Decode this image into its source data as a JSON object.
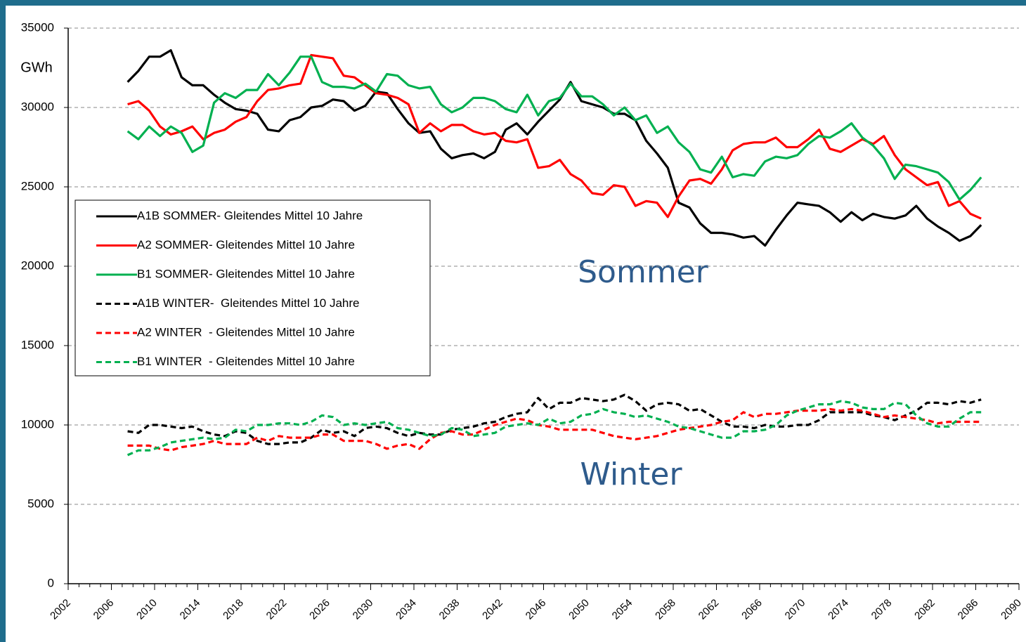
{
  "chart_data": {
    "type": "line",
    "y_label": "GWh",
    "annotations": [
      "Sommer",
      "Winter"
    ],
    "xlim": [
      2002,
      2090
    ],
    "xticks": [
      2002,
      2006,
      2010,
      2014,
      2018,
      2022,
      2026,
      2030,
      2034,
      2038,
      2042,
      2046,
      2050,
      2054,
      2058,
      2062,
      2066,
      2070,
      2074,
      2078,
      2082,
      2086,
      2090
    ],
    "ylim": [
      0,
      35000
    ],
    "yticks": [
      0,
      5000,
      10000,
      15000,
      20000,
      25000,
      30000,
      35000
    ],
    "grid": true,
    "x": [
      2007.5,
      2008.5,
      2009.5,
      2010.5,
      2011.5,
      2012.5,
      2013.5,
      2014.5,
      2015.5,
      2016.5,
      2017.5,
      2018.5,
      2019.5,
      2020.5,
      2021.5,
      2022.5,
      2023.5,
      2024.5,
      2025.5,
      2026.5,
      2027.5,
      2028.5,
      2029.5,
      2030.5,
      2031.5,
      2032.5,
      2033.5,
      2034.5,
      2035.5,
      2036.5,
      2037.5,
      2038.5,
      2039.5,
      2040.5,
      2041.5,
      2042.5,
      2043.5,
      2044.5,
      2045.5,
      2046.5,
      2047.5,
      2048.5,
      2049.5,
      2050.5,
      2051.5,
      2052.5,
      2053.5,
      2054.5,
      2055.5,
      2056.5,
      2057.5,
      2058.5,
      2059.5,
      2060.5,
      2061.5,
      2062.5,
      2063.5,
      2064.5,
      2065.5,
      2066.5,
      2067.5,
      2068.5,
      2069.5,
      2070.5,
      2071.5,
      2072.5,
      2073.5,
      2074.5,
      2075.5,
      2076.5,
      2077.5,
      2078.5,
      2079.5,
      2080.5,
      2081.5,
      2082.5,
      2083.5,
      2084.5,
      2085.5,
      2086.5
    ],
    "series": [
      {
        "name": "A1B SOMMER- Gleitendes Mittel 10 Jahre",
        "color": "#000000",
        "style": "solid",
        "values": [
          31600,
          32300,
          33200,
          33200,
          33600,
          31900,
          31400,
          31400,
          30800,
          30300,
          29900,
          29800,
          29600,
          28600,
          28500,
          29200,
          29400,
          30000,
          30100,
          30500,
          30400,
          29800,
          30100,
          31000,
          30900,
          29900,
          29000,
          28400,
          28500,
          27400,
          26800,
          27000,
          27100,
          26800,
          27200,
          28600,
          29000,
          28300,
          29100,
          29800,
          30500,
          31600,
          30400,
          30200,
          30000,
          29600,
          29600,
          29200,
          27900,
          27100,
          26200,
          24000,
          23700,
          22700,
          22100,
          22100,
          22000,
          21800,
          21900,
          21300,
          22300,
          23200,
          24000,
          23900,
          23800,
          23400,
          22800,
          23400,
          22900,
          23300,
          23100,
          23000,
          23200,
          23800,
          23000,
          22500,
          22100,
          21600,
          21900,
          22600
        ]
      },
      {
        "name": "A2 SOMMER- Gleitendes Mittel 10 Jahre",
        "color": "#ff0000",
        "style": "solid",
        "values": [
          30200,
          30400,
          29800,
          28800,
          28300,
          28500,
          28800,
          28000,
          28400,
          28600,
          29100,
          29400,
          30400,
          31100,
          31200,
          31400,
          31500,
          33300,
          33200,
          33100,
          32000,
          31900,
          31400,
          30900,
          30800,
          30600,
          30200,
          28400,
          29000,
          28500,
          28900,
          28900,
          28500,
          28300,
          28400,
          27900,
          27800,
          28000,
          26200,
          26300,
          26700,
          25800,
          25400,
          24600,
          24500,
          25100,
          25000,
          23800,
          24100,
          24000,
          23100,
          24400,
          25400,
          25500,
          25200,
          26100,
          27300,
          27700,
          27800,
          27800,
          28100,
          27500,
          27500,
          28000,
          28600,
          27400,
          27200,
          27600,
          28000,
          27700,
          28200,
          27000,
          26100,
          25600,
          25100,
          25300,
          23800,
          24100,
          23300,
          23000
        ]
      },
      {
        "name": "B1 SOMMER- Gleitendes Mittel 10 Jahre",
        "color": "#00b050",
        "style": "solid",
        "values": [
          28500,
          28000,
          28800,
          28200,
          28800,
          28400,
          27200,
          27600,
          30300,
          30900,
          30600,
          31100,
          31100,
          32100,
          31400,
          32200,
          33200,
          33200,
          31600,
          31300,
          31300,
          31200,
          31500,
          31000,
          32100,
          32000,
          31400,
          31200,
          31300,
          30200,
          29700,
          30000,
          30600,
          30600,
          30400,
          29900,
          29700,
          30800,
          29500,
          30400,
          30600,
          31500,
          30700,
          30700,
          30200,
          29500,
          30000,
          29200,
          29500,
          28400,
          28800,
          27800,
          27200,
          26100,
          25900,
          26900,
          25600,
          25800,
          25700,
          26600,
          26900,
          26800,
          27000,
          27700,
          28200,
          28100,
          28500,
          29000,
          28100,
          27600,
          26800,
          25500,
          26400,
          26300,
          26100,
          25900,
          25300,
          24200,
          24800,
          25600
        ]
      },
      {
        "name": "A1B WINTER-  Gleitendes Mittel 10 Jahre",
        "color": "#000000",
        "style": "dashed",
        "values": [
          9600,
          9500,
          10000,
          10000,
          9900,
          9800,
          9900,
          9600,
          9400,
          9300,
          9600,
          9500,
          9000,
          8800,
          8800,
          8900,
          8900,
          9200,
          9700,
          9500,
          9600,
          9300,
          9800,
          9900,
          9800,
          9500,
          9300,
          9500,
          9400,
          9400,
          9700,
          9800,
          9900,
          10100,
          10200,
          10500,
          10700,
          10800,
          11700,
          11000,
          11400,
          11400,
          11700,
          11600,
          11500,
          11600,
          11900,
          11500,
          10900,
          11300,
          11400,
          11300,
          10900,
          11000,
          10600,
          10200,
          9900,
          9900,
          9800,
          10000,
          9900,
          9900,
          10000,
          10000,
          10300,
          10800,
          10800,
          10800,
          10800,
          10600,
          10500,
          10300,
          10600,
          10900,
          11400,
          11400,
          11300,
          11500,
          11400,
          11600
        ]
      },
      {
        "name": "A2 WINTER  - Gleitendes Mittel 10 Jahre",
        "color": "#ff0000",
        "style": "dashed",
        "values": [
          8700,
          8700,
          8700,
          8500,
          8400,
          8600,
          8700,
          8800,
          9000,
          8800,
          8800,
          8800,
          9200,
          9000,
          9300,
          9200,
          9200,
          9200,
          9400,
          9400,
          9000,
          9000,
          9000,
          8800,
          8500,
          8700,
          8800,
          8500,
          9100,
          9500,
          9600,
          9400,
          9400,
          9700,
          10000,
          10200,
          10400,
          10300,
          10000,
          9900,
          9700,
          9700,
          9700,
          9700,
          9500,
          9300,
          9200,
          9100,
          9200,
          9300,
          9500,
          9700,
          9800,
          9900,
          10000,
          10200,
          10300,
          10800,
          10500,
          10700,
          10700,
          10800,
          10900,
          10900,
          10900,
          11000,
          10900,
          11000,
          10900,
          10700,
          10500,
          10600,
          10500,
          10400,
          10300,
          10100,
          10200,
          10200,
          10200,
          10200
        ]
      },
      {
        "name": "B1 WINTER  - Gleitendes Mittel 10 Jahre",
        "color": "#00b050",
        "style": "dashed",
        "values": [
          8100,
          8400,
          8400,
          8600,
          8900,
          9000,
          9100,
          9200,
          9100,
          9200,
          9700,
          9600,
          10000,
          10000,
          10100,
          10100,
          10000,
          10200,
          10600,
          10500,
          10000,
          10100,
          10000,
          10100,
          10200,
          9800,
          9700,
          9500,
          9300,
          9400,
          9800,
          9700,
          9300,
          9400,
          9500,
          9900,
          10000,
          10100,
          10000,
          10400,
          10100,
          10200,
          10600,
          10700,
          11000,
          10800,
          10700,
          10500,
          10600,
          10400,
          10200,
          9900,
          9800,
          9600,
          9400,
          9200,
          9200,
          9600,
          9600,
          9700,
          10000,
          10600,
          10900,
          11100,
          11300,
          11300,
          11500,
          11400,
          11100,
          11000,
          11000,
          11400,
          11300,
          10600,
          10100,
          9900,
          9900,
          10400,
          10800,
          10800
        ]
      }
    ]
  }
}
